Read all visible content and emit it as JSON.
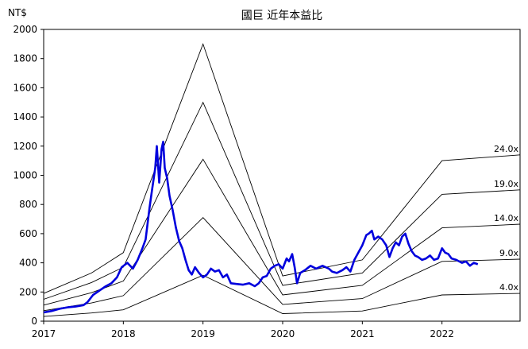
{
  "chart_data": {
    "type": "line",
    "title": "國巨 近年本益比",
    "unit_label": "NT$",
    "ylim": [
      0,
      2000
    ],
    "xlim": [
      2017.0,
      2022.98
    ],
    "y_ticks": [
      0,
      200,
      400,
      600,
      800,
      1000,
      1200,
      1400,
      1600,
      1800,
      2000
    ],
    "x_ticks": [
      {
        "value": 2017,
        "label": "2017"
      },
      {
        "value": 2018,
        "label": "2018"
      },
      {
        "value": 2019,
        "label": "2019"
      },
      {
        "value": 2020,
        "label": "2020"
      },
      {
        "value": 2021,
        "label": "2021"
      },
      {
        "value": 2022,
        "label": "2022"
      }
    ],
    "grid": false,
    "pe_bands": [
      {
        "label": "24.0x",
        "points": [
          [
            2017.0,
            190
          ],
          [
            2017.6,
            330
          ],
          [
            2018.0,
            470
          ],
          [
            2019.0,
            1900
          ],
          [
            2020.0,
            310
          ],
          [
            2021.0,
            420
          ],
          [
            2022.0,
            1100
          ],
          [
            2022.98,
            1140
          ]
        ]
      },
      {
        "label": "19.0x",
        "points": [
          [
            2017.0,
            150
          ],
          [
            2017.6,
            265
          ],
          [
            2018.0,
            370
          ],
          [
            2019.0,
            1500
          ],
          [
            2020.0,
            245
          ],
          [
            2021.0,
            330
          ],
          [
            2022.0,
            870
          ],
          [
            2022.98,
            900
          ]
        ]
      },
      {
        "label": "14.0x",
        "points": [
          [
            2017.0,
            110
          ],
          [
            2017.6,
            195
          ],
          [
            2018.0,
            275
          ],
          [
            2019.0,
            1110
          ],
          [
            2020.0,
            180
          ],
          [
            2021.0,
            245
          ],
          [
            2022.0,
            640
          ],
          [
            2022.98,
            665
          ]
        ]
      },
      {
        "label": "9.0x",
        "points": [
          [
            2017.0,
            72
          ],
          [
            2017.6,
            125
          ],
          [
            2018.0,
            175
          ],
          [
            2019.0,
            710
          ],
          [
            2020.0,
            115
          ],
          [
            2021.0,
            155
          ],
          [
            2022.0,
            410
          ],
          [
            2022.98,
            425
          ]
        ]
      },
      {
        "label": "4.0x",
        "points": [
          [
            2017.0,
            32
          ],
          [
            2017.6,
            56
          ],
          [
            2018.0,
            78
          ],
          [
            2019.0,
            315
          ],
          [
            2020.0,
            52
          ],
          [
            2021.0,
            70
          ],
          [
            2022.0,
            180
          ],
          [
            2022.98,
            190
          ]
        ]
      }
    ],
    "series": [
      {
        "color": "#0000dd",
        "points": [
          [
            2017.0,
            60
          ],
          [
            2017.1,
            70
          ],
          [
            2017.2,
            85
          ],
          [
            2017.3,
            95
          ],
          [
            2017.4,
            100
          ],
          [
            2017.5,
            110
          ],
          [
            2017.55,
            130
          ],
          [
            2017.62,
            180
          ],
          [
            2017.7,
            210
          ],
          [
            2017.78,
            240
          ],
          [
            2017.85,
            260
          ],
          [
            2017.92,
            300
          ],
          [
            2017.98,
            370
          ],
          [
            2018.05,
            400
          ],
          [
            2018.12,
            360
          ],
          [
            2018.18,
            420
          ],
          [
            2018.24,
            500
          ],
          [
            2018.28,
            560
          ],
          [
            2018.33,
            780
          ],
          [
            2018.36,
            900
          ],
          [
            2018.4,
            1050
          ],
          [
            2018.42,
            1200
          ],
          [
            2018.45,
            950
          ],
          [
            2018.48,
            1180
          ],
          [
            2018.5,
            1230
          ],
          [
            2018.52,
            1050
          ],
          [
            2018.55,
            980
          ],
          [
            2018.58,
            860
          ],
          [
            2018.62,
            760
          ],
          [
            2018.66,
            640
          ],
          [
            2018.7,
            550
          ],
          [
            2018.74,
            500
          ],
          [
            2018.78,
            420
          ],
          [
            2018.82,
            350
          ],
          [
            2018.86,
            320
          ],
          [
            2018.9,
            370
          ],
          [
            2018.95,
            330
          ],
          [
            2019.0,
            300
          ],
          [
            2019.05,
            320
          ],
          [
            2019.1,
            360
          ],
          [
            2019.15,
            340
          ],
          [
            2019.2,
            350
          ],
          [
            2019.25,
            300
          ],
          [
            2019.3,
            320
          ],
          [
            2019.35,
            260
          ],
          [
            2019.42,
            255
          ],
          [
            2019.5,
            250
          ],
          [
            2019.58,
            260
          ],
          [
            2019.65,
            240
          ],
          [
            2019.7,
            260
          ],
          [
            2019.75,
            300
          ],
          [
            2019.8,
            310
          ],
          [
            2019.85,
            360
          ],
          [
            2019.9,
            380
          ],
          [
            2019.95,
            390
          ],
          [
            2020.0,
            360
          ],
          [
            2020.05,
            430
          ],
          [
            2020.08,
            410
          ],
          [
            2020.12,
            460
          ],
          [
            2020.15,
            370
          ],
          [
            2020.18,
            260
          ],
          [
            2020.22,
            330
          ],
          [
            2020.28,
            350
          ],
          [
            2020.35,
            380
          ],
          [
            2020.42,
            360
          ],
          [
            2020.5,
            380
          ],
          [
            2020.58,
            360
          ],
          [
            2020.62,
            340
          ],
          [
            2020.68,
            330
          ],
          [
            2020.75,
            350
          ],
          [
            2020.8,
            370
          ],
          [
            2020.85,
            340
          ],
          [
            2020.9,
            420
          ],
          [
            2020.95,
            470
          ],
          [
            2021.0,
            520
          ],
          [
            2021.05,
            590
          ],
          [
            2021.08,
            600
          ],
          [
            2021.12,
            620
          ],
          [
            2021.15,
            560
          ],
          [
            2021.2,
            580
          ],
          [
            2021.25,
            560
          ],
          [
            2021.3,
            520
          ],
          [
            2021.34,
            440
          ],
          [
            2021.38,
            500
          ],
          [
            2021.42,
            540
          ],
          [
            2021.46,
            520
          ],
          [
            2021.5,
            580
          ],
          [
            2021.54,
            600
          ],
          [
            2021.58,
            530
          ],
          [
            2021.62,
            480
          ],
          [
            2021.66,
            450
          ],
          [
            2021.7,
            440
          ],
          [
            2021.75,
            420
          ],
          [
            2021.8,
            430
          ],
          [
            2021.85,
            450
          ],
          [
            2021.9,
            420
          ],
          [
            2021.95,
            430
          ],
          [
            2022.0,
            500
          ],
          [
            2022.04,
            470
          ],
          [
            2022.08,
            460
          ],
          [
            2022.12,
            430
          ],
          [
            2022.18,
            420
          ],
          [
            2022.25,
            400
          ],
          [
            2022.3,
            410
          ],
          [
            2022.35,
            380
          ],
          [
            2022.4,
            400
          ],
          [
            2022.45,
            390
          ]
        ]
      }
    ]
  }
}
